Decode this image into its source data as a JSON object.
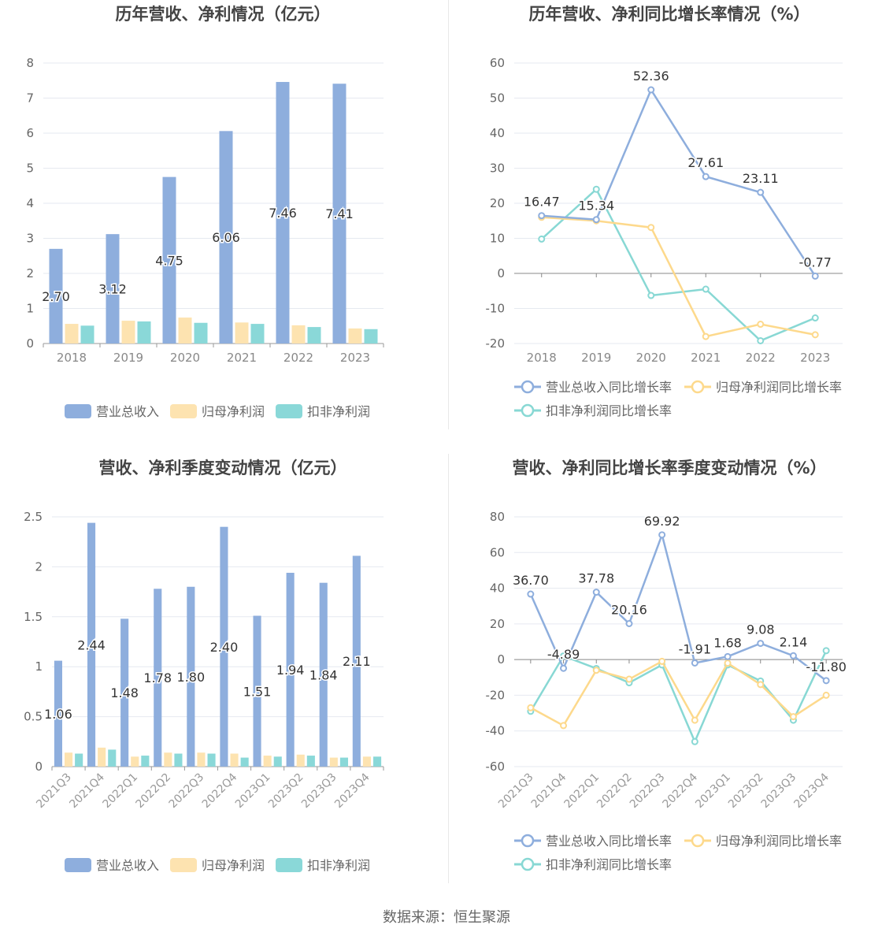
{
  "source_label": "数据来源：恒生聚源",
  "colors": {
    "revenue": "#8eaedd",
    "net_profit": "#fde3b0",
    "deducted_profit": "#8ad8d8",
    "rev_rate": "#8eaedd",
    "net_rate": "#fdd98c",
    "ded_rate": "#88d8d4",
    "grid": "#e6e9f0",
    "axis": "#666666"
  },
  "chart_data": [
    {
      "type": "bar",
      "title": "历年营收、净利情况（亿元）",
      "categories": [
        "2018",
        "2019",
        "2020",
        "2021",
        "2022",
        "2023"
      ],
      "ylim": [
        0,
        8
      ],
      "yticks": [
        "0",
        "1",
        "2",
        "3",
        "4",
        "5",
        "6",
        "7",
        "8"
      ],
      "grid": true,
      "legend_position": "bottom",
      "series": [
        {
          "name": "营业总收入",
          "values": [
            2.7,
            3.12,
            4.75,
            6.06,
            7.46,
            7.41
          ],
          "labels": [
            "2.70",
            "3.12",
            "4.75",
            "6.06",
            "7.46",
            "7.41"
          ]
        },
        {
          "name": "归母净利润",
          "values": [
            0.56,
            0.65,
            0.74,
            0.6,
            0.52,
            0.43
          ]
        },
        {
          "name": "扣非净利润",
          "values": [
            0.51,
            0.63,
            0.59,
            0.56,
            0.47,
            0.41
          ]
        }
      ]
    },
    {
      "type": "line",
      "title": "历年营收、净利同比增长率情况（%）",
      "categories": [
        "2018",
        "2019",
        "2020",
        "2021",
        "2022",
        "2023"
      ],
      "ylim": [
        -20,
        60
      ],
      "yticks": [
        "-20",
        "-10",
        "0",
        "10",
        "20",
        "30",
        "40",
        "50",
        "60"
      ],
      "grid": true,
      "legend_position": "bottom",
      "series": [
        {
          "name": "营业总收入同比增长率",
          "values": [
            16.47,
            15.34,
            52.36,
            27.61,
            23.11,
            -0.77
          ],
          "labels": [
            "16.47",
            "15.34",
            "52.36",
            "27.61",
            "23.11",
            "-0.77"
          ]
        },
        {
          "name": "归母净利润同比增长率",
          "values": [
            16.0,
            15.0,
            13.1,
            -18.0,
            -14.5,
            -17.5
          ]
        },
        {
          "name": "扣非净利润同比增长率",
          "values": [
            9.8,
            24.0,
            -6.3,
            -4.5,
            -19.2,
            -12.7
          ]
        }
      ]
    },
    {
      "type": "bar",
      "title": "营收、净利季度变动情况（亿元）",
      "categories": [
        "2021Q3",
        "2021Q4",
        "2022Q1",
        "2022Q2",
        "2022Q3",
        "2022Q4",
        "2023Q1",
        "2023Q2",
        "2023Q3",
        "2023Q4"
      ],
      "ylim": [
        0,
        2.5
      ],
      "yticks": [
        "0",
        "0.5",
        "1",
        "1.5",
        "2",
        "2.5"
      ],
      "grid": true,
      "legend_position": "bottom",
      "series": [
        {
          "name": "营业总收入",
          "values": [
            1.06,
            2.44,
            1.48,
            1.78,
            1.8,
            2.4,
            1.51,
            1.94,
            1.84,
            2.11
          ],
          "labels": [
            "1.06",
            "2.44",
            "1.48",
            "1.78",
            "1.80",
            "2.40",
            "1.51",
            "1.94",
            "1.84",
            "2.11"
          ]
        },
        {
          "name": "归母净利润",
          "values": [
            0.14,
            0.19,
            0.1,
            0.14,
            0.14,
            0.13,
            0.11,
            0.12,
            0.09,
            0.1
          ]
        },
        {
          "name": "扣非净利润",
          "values": [
            0.13,
            0.17,
            0.11,
            0.13,
            0.13,
            0.09,
            0.1,
            0.11,
            0.09,
            0.1
          ]
        }
      ]
    },
    {
      "type": "line",
      "title": "营收、净利同比增长率季度变动情况（%）",
      "categories": [
        "2021Q3",
        "2021Q4",
        "2022Q1",
        "2022Q2",
        "2022Q3",
        "2022Q4",
        "2023Q1",
        "2023Q2",
        "2023Q3",
        "2023Q4"
      ],
      "ylim": [
        -60,
        80
      ],
      "yticks": [
        "-60",
        "-40",
        "-20",
        "0",
        "20",
        "40",
        "60",
        "80"
      ],
      "grid": true,
      "legend_position": "bottom",
      "series": [
        {
          "name": "营业总收入同比增长率",
          "values": [
            36.7,
            -4.89,
            37.78,
            20.16,
            69.92,
            -1.91,
            1.68,
            9.08,
            2.14,
            -11.8
          ],
          "labels": [
            "36.70",
            "-4.89",
            "37.78",
            "20.16",
            "69.92",
            "-1.91",
            "1.68",
            "9.08",
            "2.14",
            "-11.80"
          ]
        },
        {
          "name": "归母净利润同比增长率",
          "values": [
            -27,
            -37,
            -6,
            -11,
            -1,
            -34,
            -2,
            -14,
            -32,
            -20
          ]
        },
        {
          "name": "扣非净利润同比增长率",
          "values": [
            -29,
            2,
            -5,
            -13,
            -3,
            -46,
            -3,
            -12,
            -34,
            5
          ]
        }
      ]
    }
  ]
}
